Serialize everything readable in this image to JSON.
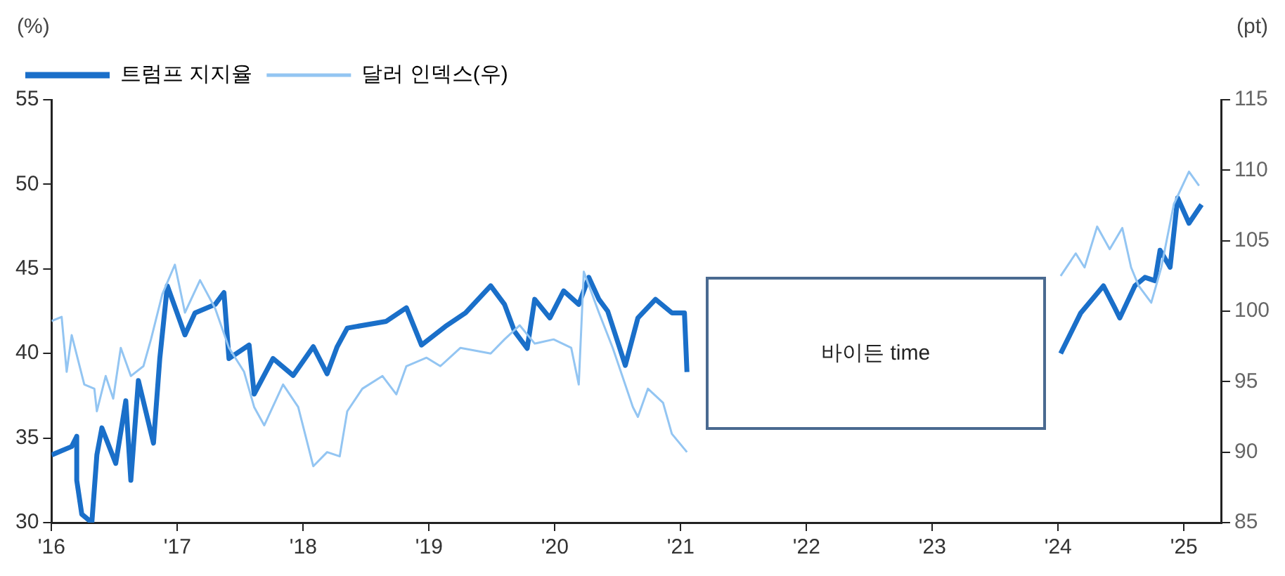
{
  "chart_data": {
    "type": "line",
    "ylabel": "(%)",
    "y2label": "(pt)",
    "xlim": [
      2016,
      2025.3
    ],
    "xticks": [
      {
        "value": 2016,
        "label": "'16"
      },
      {
        "value": 2017,
        "label": "'17"
      },
      {
        "value": 2018,
        "label": "'18"
      },
      {
        "value": 2019,
        "label": "'19"
      },
      {
        "value": 2020,
        "label": "'20"
      },
      {
        "value": 2021,
        "label": "'21"
      },
      {
        "value": 2022,
        "label": "'22"
      },
      {
        "value": 2023,
        "label": "'23"
      },
      {
        "value": 2024,
        "label": "'24"
      },
      {
        "value": 2025,
        "label": "'25"
      }
    ],
    "ylim": [
      30,
      55
    ],
    "yticks": [
      30,
      35,
      40,
      45,
      50,
      55
    ],
    "y2lim": [
      85,
      115
    ],
    "y2ticks": [
      85,
      90,
      95,
      100,
      105,
      110,
      115
    ],
    "grid": false,
    "legend": "top",
    "marker": "none",
    "annotations": [
      "바이든 time"
    ],
    "series": [
      {
        "name": "트럼프 지지율",
        "color": "#1a6fc9",
        "x": [
          2016.0,
          2016.16,
          2016.2,
          2016.2,
          2016.24,
          2016.32,
          2016.36,
          2016.4,
          2016.51,
          2016.59,
          2016.63,
          2016.69,
          2016.81,
          2016.86,
          2016.92,
          2017.06,
          2017.14,
          2017.3,
          2017.37,
          2017.41,
          2017.57,
          2017.61,
          2017.76,
          2017.92,
          2018.08,
          2018.19,
          2018.27,
          2018.35,
          2018.66,
          2018.82,
          2018.94,
          2019.13,
          2019.29,
          2019.49,
          2019.6,
          2019.68,
          2019.78,
          2019.84,
          2019.96,
          2020.07,
          2020.19,
          2020.27,
          2020.35,
          2020.42,
          2020.56,
          2020.66,
          2020.8,
          2020.93,
          2021.03,
          2021.05,
          2022.5,
          2024.02,
          2024.18,
          2024.36,
          2024.45,
          2024.49,
          2024.61,
          2024.69,
          2024.77,
          2024.81,
          2024.89,
          2024.95,
          2025.04,
          2025.14
        ],
        "values": [
          34,
          34.5,
          35.1,
          32.5,
          30.5,
          30,
          34,
          35.6,
          33.5,
          37.2,
          32.5,
          38.4,
          34.7,
          39.7,
          44,
          41.1,
          42.4,
          42.9,
          43.6,
          39.7,
          40.5,
          37.6,
          39.7,
          38.7,
          40.4,
          38.8,
          40.4,
          41.5,
          41.9,
          42.7,
          40.5,
          41.6,
          42.4,
          44,
          42.9,
          41.3,
          40.3,
          43.2,
          42.1,
          43.7,
          42.9,
          44.5,
          43.2,
          42.5,
          39.3,
          42.1,
          43.2,
          42.4,
          42.4,
          38.9,
          null,
          40,
          42.4,
          44,
          42.7,
          42.1,
          44,
          44.5,
          44.3,
          46.1,
          45.1,
          49.2,
          47.7,
          48.8
        ]
      },
      {
        "name": "달러 인덱스(우)",
        "color": "#93c5f2",
        "axis": "y2",
        "x": [
          2016.0,
          2016.08,
          2016.12,
          2016.16,
          2016.26,
          2016.34,
          2016.36,
          2016.43,
          2016.49,
          2016.55,
          2016.63,
          2016.73,
          2016.79,
          2016.88,
          2016.98,
          2017.06,
          2017.18,
          2017.3,
          2017.41,
          2017.53,
          2017.61,
          2017.69,
          2017.84,
          2017.96,
          2018.08,
          2018.19,
          2018.29,
          2018.35,
          2018.47,
          2018.63,
          2018.74,
          2018.82,
          2018.98,
          2019.09,
          2019.25,
          2019.49,
          2019.6,
          2019.72,
          2019.84,
          2019.99,
          2020.13,
          2020.19,
          2020.23,
          2020.35,
          2020.46,
          2020.62,
          2020.66,
          2020.74,
          2020.86,
          2020.93,
          2021.05,
          2022.5,
          2024.02,
          2024.14,
          2024.21,
          2024.31,
          2024.41,
          2024.51,
          2024.58,
          2024.64,
          2024.74,
          2024.82,
          2024.92,
          2025.04,
          2025.12
        ],
        "values": [
          99.3,
          99.6,
          95.7,
          98.3,
          94.8,
          94.5,
          92.9,
          95.4,
          93.8,
          97.4,
          95.4,
          96.1,
          98,
          101.2,
          103.3,
          99.9,
          102.2,
          100.2,
          97.4,
          95.7,
          93.2,
          91.9,
          94.8,
          93.2,
          89,
          90,
          89.7,
          92.9,
          94.5,
          95.4,
          94.1,
          96.1,
          96.7,
          96.1,
          97.4,
          97,
          98,
          99,
          97.7,
          98,
          97.4,
          94.8,
          102.8,
          99.9,
          97.4,
          93.2,
          92.5,
          94.5,
          93.5,
          91.3,
          90,
          null,
          102.5,
          104.1,
          103.1,
          106,
          104.4,
          105.9,
          103.1,
          101.8,
          100.6,
          103.1,
          107.6,
          109.9,
          108.9
        ]
      }
    ]
  }
}
